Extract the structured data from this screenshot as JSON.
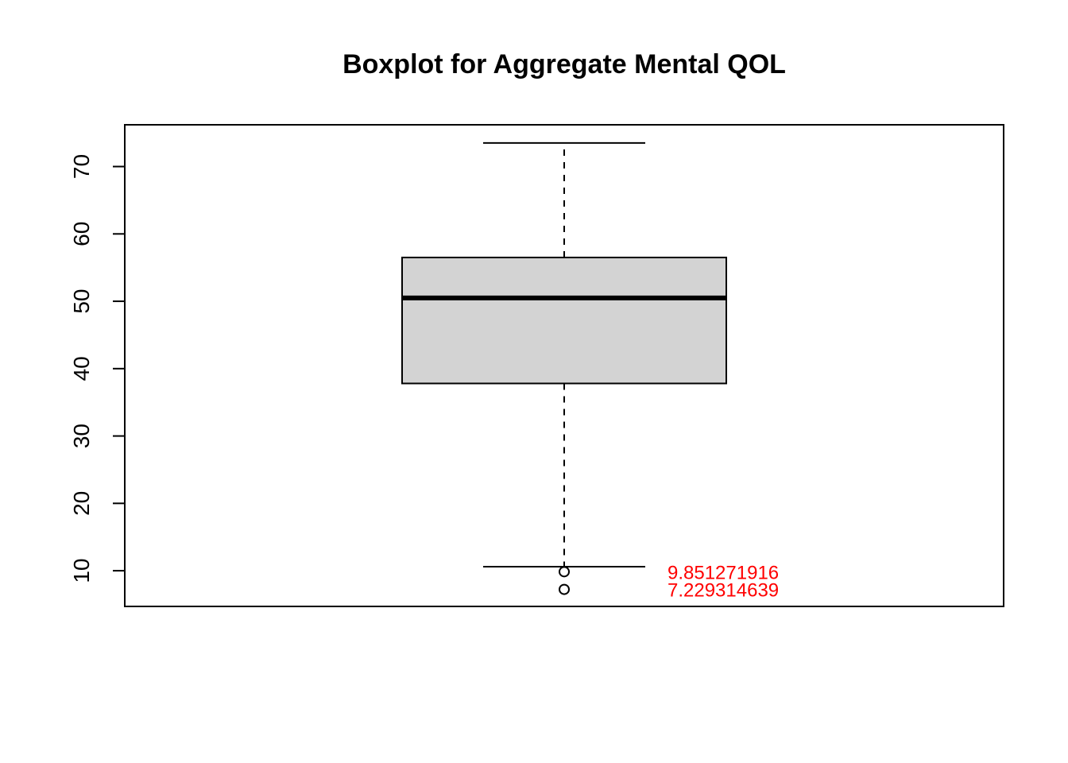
{
  "chart_data": {
    "type": "boxplot",
    "title": "Boxplot for Aggregate Mental QOL",
    "xlabel": "",
    "ylabel": "",
    "ylim": [
      4.7,
      76.2
    ],
    "yticks": [
      10,
      20,
      30,
      40,
      50,
      60,
      70
    ],
    "ytick_labels": [
      "10",
      "20",
      "30",
      "40",
      "50",
      "60",
      "70"
    ],
    "grid": false,
    "box": {
      "whisker_low": 10.6,
      "q1": 37.8,
      "median": 50.5,
      "q3": 56.5,
      "whisker_high": 73.5
    },
    "outliers": [
      {
        "value": 9.851271916,
        "label": "9.851271916"
      },
      {
        "value": 7.229314639,
        "label": "7.229314639"
      }
    ],
    "colors": {
      "box_fill": "#d3d3d3",
      "outlier_label": "#ff0000",
      "line": "#000000"
    }
  }
}
